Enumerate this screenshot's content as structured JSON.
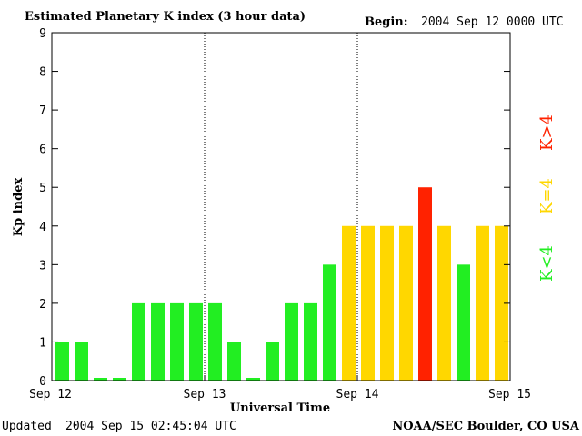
{
  "header": {
    "title": "Estimated Planetary K index (3 hour data)",
    "begin_label": "Begin:",
    "begin_value": "2004 Sep 12 0000 UTC"
  },
  "footer": {
    "updated_label": "Updated",
    "updated_value": "2004 Sep 15 02:45:04 UTC",
    "credit": "NOAA/SEC Boulder, CO USA"
  },
  "legend": {
    "low": "K<4",
    "mid": "K=4",
    "high": "K>4"
  },
  "colors": {
    "low": "#22ee22",
    "mid": "#ffd700",
    "high": "#ff2200",
    "axis": "#000000"
  },
  "chart_data": {
    "type": "bar",
    "title": "Estimated Planetary K index (3 hour data)",
    "xlabel": "Universal Time",
    "ylabel": "Kp index",
    "ylim": [
      0,
      9
    ],
    "yticks": [
      0,
      1,
      2,
      3,
      4,
      5,
      6,
      7,
      8,
      9
    ],
    "xticks": [
      "Sep 12",
      "Sep 13",
      "Sep 14",
      "Sep 15"
    ],
    "interval_hours": 3,
    "day_separators": "dotted vertical lines at Sep 13 and Sep 14",
    "values": [
      1,
      1,
      0,
      0,
      2,
      2,
      2,
      2,
      2,
      1,
      0,
      1,
      2,
      2,
      3,
      4,
      4,
      4,
      4,
      5,
      4,
      3,
      4,
      4
    ]
  }
}
